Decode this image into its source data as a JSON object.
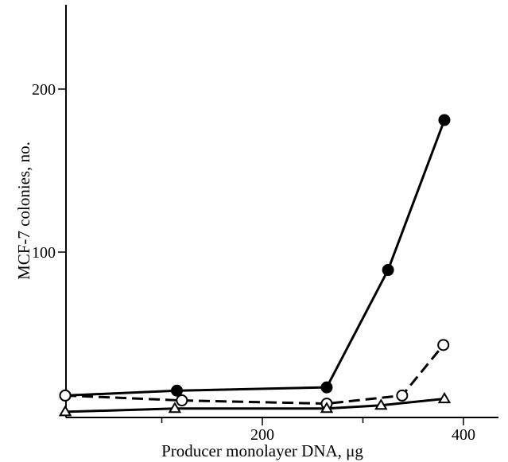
{
  "chart_data": {
    "type": "line",
    "title": "",
    "xlabel": "Producer monolayer DNA, μg",
    "ylabel": "MCF-7 colonies, no.",
    "xlim": [
      0,
      430
    ],
    "ylim": [
      0,
      250
    ],
    "xticks": [
      {
        "value": 200,
        "label": "200"
      },
      {
        "value": 400,
        "label": "400"
      }
    ],
    "xminor_ticks": [
      100,
      300
    ],
    "yticks": [
      {
        "value": 100,
        "label": "100"
      },
      {
        "value": 200,
        "label": "200"
      }
    ],
    "grid": false,
    "legend": "none",
    "series": [
      {
        "marker": "filled-circle",
        "line_style": "solid",
        "color": "#000000",
        "x": [
          4,
          115,
          264,
          325,
          381
        ],
        "y": [
          12,
          15,
          17,
          89,
          181
        ]
      },
      {
        "marker": "open-circle",
        "line_style": "dashed",
        "color": "#000000",
        "x": [
          4,
          120,
          264,
          339,
          380
        ],
        "y": [
          12,
          9,
          7,
          12,
          43
        ]
      },
      {
        "marker": "open-triangle",
        "line_style": "solid",
        "color": "#000000",
        "x": [
          4,
          113,
          264,
          318,
          381
        ],
        "y": [
          2,
          4,
          4,
          6,
          10
        ]
      }
    ]
  }
}
